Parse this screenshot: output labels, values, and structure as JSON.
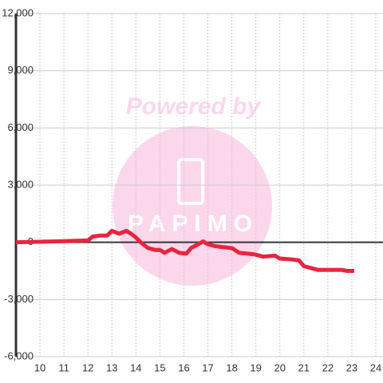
{
  "chart_data": {
    "type": "line",
    "watermark": [
      "Powered by",
      "PAPIMO"
    ],
    "x": [
      9,
      10,
      11,
      12,
      12.2,
      12.5,
      12.8,
      13,
      13.3,
      13.6,
      13.8,
      14,
      14.2,
      14.5,
      14.8,
      15,
      15.2,
      15.5,
      15.8,
      16.1,
      16.3,
      16.6,
      16.8,
      17,
      17.3,
      17.6,
      18,
      18.3,
      18.7,
      19,
      19.3,
      19.8,
      20,
      20.5,
      20.8,
      21,
      21.3,
      21.6,
      22,
      22.6,
      22.8,
      23.1
    ],
    "series": [
      {
        "color": "#e8253f",
        "values": [
          0,
          30,
          60,
          100,
          300,
          350,
          350,
          600,
          450,
          600,
          450,
          250,
          0,
          -300,
          -400,
          -400,
          -550,
          -350,
          -550,
          -600,
          -300,
          -100,
          50,
          -100,
          -200,
          -250,
          -300,
          -550,
          -600,
          -650,
          -750,
          -700,
          -850,
          -900,
          -950,
          -1250,
          -1350,
          -1450,
          -1450,
          -1450,
          -1500,
          -1500
        ]
      }
    ],
    "xlim": [
      9,
      24.3
    ],
    "ylim": [
      -6000,
      12000
    ],
    "xticks": [
      10,
      11,
      12,
      13,
      14,
      15,
      16,
      17,
      18,
      19,
      20,
      21,
      22,
      23,
      24
    ],
    "yticks": [
      {
        "value": -6000,
        "label": "-6,000"
      },
      {
        "value": -3000,
        "label": "-3,000"
      },
      0,
      {
        "value": 3000,
        "label": "3,000"
      },
      {
        "value": 6000,
        "label": "6,000"
      },
      {
        "value": 9000,
        "label": "9,000"
      },
      {
        "value": 12000,
        "label": "12,000"
      }
    ],
    "grid": true
  }
}
